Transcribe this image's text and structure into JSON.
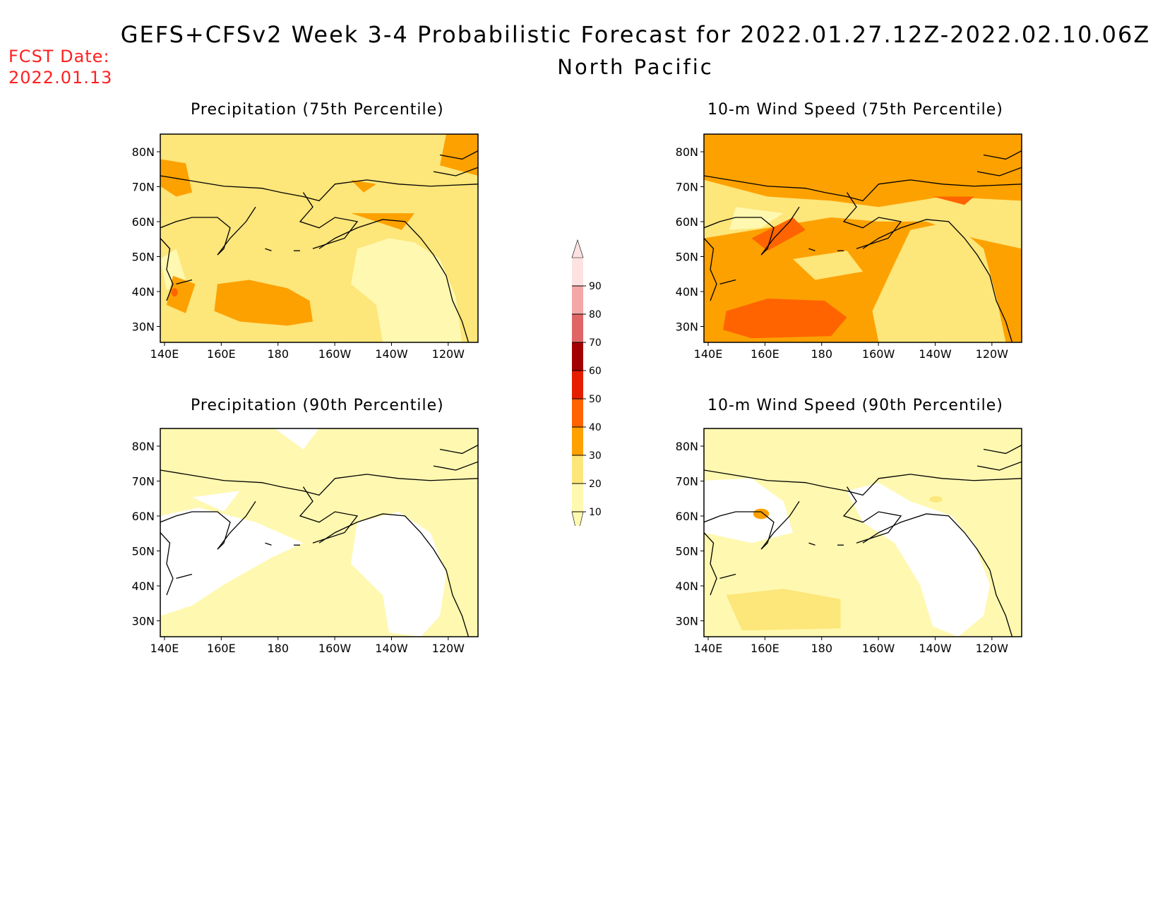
{
  "header": {
    "title": "GEFS+CFSv2 Week 3-4 Probabilistic Forecast for 2022.01.27.12Z-2022.02.10.06Z",
    "subtitle": "North Pacific",
    "fcst_label": "FCST Date:",
    "fcst_value": "2022.01.13"
  },
  "panels": [
    {
      "id": "precip-75",
      "title": "Precipitation (75th Percentile)"
    },
    {
      "id": "wind-75",
      "title": "10-m Wind Speed (75th Percentile)"
    },
    {
      "id": "precip-90",
      "title": "Precipitation (90th Percentile)"
    },
    {
      "id": "wind-90",
      "title": "10-m Wind Speed (90th Percentile)"
    }
  ],
  "axes": {
    "lon_labels": [
      "140E",
      "160E",
      "180",
      "160W",
      "140W",
      "120W"
    ],
    "lat_labels": [
      "80N",
      "70N",
      "60N",
      "50N",
      "40N",
      "30N"
    ]
  },
  "colorbar": {
    "levels": [
      "10",
      "20",
      "30",
      "40",
      "50",
      "60",
      "70",
      "80",
      "90"
    ],
    "colors": [
      "#fff8b0",
      "#fde67a",
      "#fda100",
      "#ff6400",
      "#e61e00",
      "#a30000",
      "#e06666",
      "#f4a7a7",
      "#fde2e2"
    ]
  },
  "colors": {
    "ocean_low": "#fff8b0",
    "ocean_mid": "#fde67a",
    "high": "#fda100",
    "higher": "#ff6400",
    "title_red": "#ff2020"
  }
}
